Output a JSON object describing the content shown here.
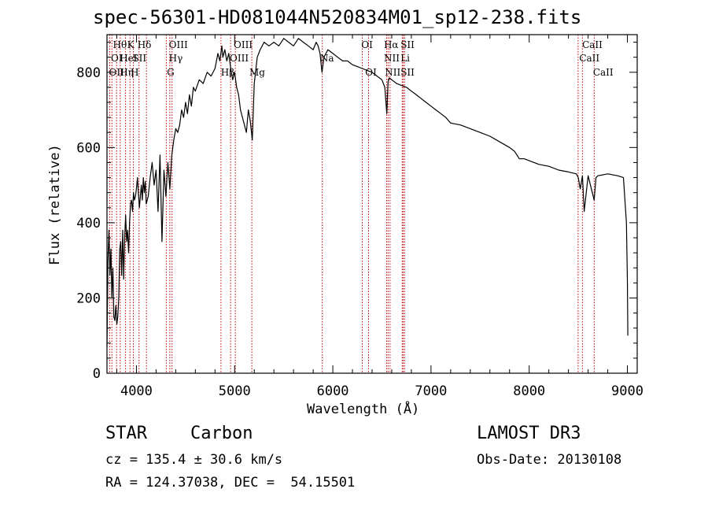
{
  "chart_data": {
    "type": "line",
    "title": "spec-56301-HD081044N520834M01_sp12-238.fits",
    "xlabel": "Wavelength (Å)",
    "ylabel": "Flux (relative)",
    "xlim": [
      3700,
      9100
    ],
    "ylim": [
      0,
      900
    ],
    "xticks": [
      4000,
      5000,
      6000,
      7000,
      8000,
      9000
    ],
    "yticks": [
      0,
      200,
      400,
      600,
      800
    ],
    "xtick_labels": [
      "4000",
      "5000",
      "6000",
      "7000",
      "8000",
      "9000"
    ],
    "ytick_labels": [
      "0",
      "200",
      "400",
      "600",
      "800"
    ],
    "series": [
      {
        "name": "spectrum",
        "x": [
          3700,
          3710,
          3720,
          3730,
          3740,
          3750,
          3760,
          3770,
          3780,
          3790,
          3800,
          3810,
          3820,
          3830,
          3840,
          3850,
          3860,
          3870,
          3880,
          3890,
          3900,
          3910,
          3920,
          3930,
          3940,
          3950,
          3960,
          3970,
          3980,
          3990,
          4000,
          4010,
          4020,
          4030,
          4040,
          4050,
          4060,
          4070,
          4080,
          4090,
          4100,
          4120,
          4140,
          4160,
          4180,
          4200,
          4220,
          4240,
          4260,
          4280,
          4300,
          4320,
          4340,
          4360,
          4380,
          4400,
          4420,
          4440,
          4460,
          4480,
          4500,
          4520,
          4540,
          4560,
          4580,
          4600,
          4640,
          4680,
          4720,
          4760,
          4800,
          4830,
          4850,
          4870,
          4880,
          4900,
          4920,
          4940,
          4960,
          4980,
          5000,
          5020,
          5040,
          5060,
          5080,
          5100,
          5120,
          5140,
          5160,
          5180,
          5200,
          5230,
          5260,
          5300,
          5350,
          5400,
          5450,
          5500,
          5550,
          5600,
          5650,
          5700,
          5750,
          5800,
          5830,
          5850,
          5870,
          5890,
          5900,
          5910,
          5950,
          6000,
          6050,
          6100,
          6150,
          6200,
          6250,
          6300,
          6350,
          6400,
          6450,
          6500,
          6530,
          6550,
          6563,
          6575,
          6600,
          6650,
          6700,
          6750,
          6800,
          6850,
          6900,
          6950,
          7000,
          7050,
          7100,
          7150,
          7200,
          7300,
          7400,
          7500,
          7600,
          7700,
          7800,
          7850,
          7900,
          7950,
          8000,
          8100,
          8200,
          8300,
          8400,
          8480,
          8500,
          8520,
          8542,
          8560,
          8600,
          8662,
          8680,
          8700,
          8800,
          8900,
          8960,
          8990,
          9000,
          9005
        ],
        "values": [
          70,
          300,
          380,
          260,
          330,
          200,
          280,
          150,
          140,
          180,
          130,
          150,
          200,
          330,
          350,
          260,
          380,
          250,
          360,
          420,
          350,
          380,
          320,
          400,
          450,
          460,
          430,
          480,
          460,
          470,
          490,
          520,
          480,
          440,
          470,
          500,
          460,
          520,
          480,
          510,
          450,
          470,
          520,
          560,
          500,
          540,
          430,
          580,
          350,
          540,
          470,
          560,
          490,
          580,
          620,
          650,
          640,
          660,
          700,
          680,
          720,
          690,
          740,
          710,
          760,
          750,
          780,
          770,
          800,
          790,
          810,
          850,
          830,
          870,
          840,
          860,
          830,
          850,
          810,
          780,
          800,
          760,
          740,
          700,
          680,
          660,
          640,
          700,
          670,
          620,
          770,
          840,
          860,
          880,
          870,
          880,
          870,
          890,
          880,
          870,
          890,
          880,
          870,
          860,
          880,
          870,
          850,
          800,
          820,
          840,
          860,
          850,
          840,
          830,
          830,
          820,
          815,
          810,
          805,
          800,
          790,
          780,
          760,
          690,
          775,
          785,
          780,
          770,
          765,
          760,
          750,
          740,
          730,
          720,
          710,
          700,
          690,
          680,
          665,
          660,
          650,
          640,
          630,
          615,
          600,
          590,
          570,
          570,
          565,
          555,
          550,
          540,
          535,
          530,
          520,
          490,
          525,
          430,
          525,
          460,
          520,
          525,
          530,
          525,
          520,
          400,
          250,
          100
        ]
      }
    ],
    "line_marks": [
      {
        "x": 3727,
        "labels": [
          "OII"
        ]
      },
      {
        "x": 3750,
        "labels": [
          "OII"
        ]
      },
      {
        "x": 3798,
        "labels": [
          "Hθ"
        ]
      },
      {
        "x": 3835,
        "labels": [
          "Hη"
        ]
      },
      {
        "x": 3889,
        "labels": [
          "HeI"
        ]
      },
      {
        "x": 3934,
        "labels": [
          "K"
        ]
      },
      {
        "x": 3969,
        "labels": [
          "H"
        ]
      },
      {
        "x": 4026,
        "labels": [
          "SII"
        ]
      },
      {
        "x": 4102,
        "labels": [
          "Hδ"
        ]
      },
      {
        "x": 4304,
        "labels": [
          "G"
        ]
      },
      {
        "x": 4340,
        "labels": [
          "Hγ"
        ]
      },
      {
        "x": 4363,
        "labels": [
          "OIII"
        ]
      },
      {
        "x": 4861,
        "labels": [
          "Hβ"
        ]
      },
      {
        "x": 4959,
        "labels": [
          "OIII"
        ]
      },
      {
        "x": 5007,
        "labels": [
          "OIII"
        ]
      },
      {
        "x": 5175,
        "labels": [
          "Mg"
        ]
      },
      {
        "x": 5893,
        "labels": [
          "Na"
        ]
      },
      {
        "x": 6300,
        "labels": [
          "OI"
        ]
      },
      {
        "x": 6364,
        "labels": [
          "OI"
        ]
      },
      {
        "x": 6548,
        "labels": [
          "NII"
        ]
      },
      {
        "x": 6563,
        "labels": [
          "Hα"
        ]
      },
      {
        "x": 6583,
        "labels": [
          "NII"
        ]
      },
      {
        "x": 6707,
        "labels": [
          "Li"
        ]
      },
      {
        "x": 6717,
        "labels": [
          "SII"
        ]
      },
      {
        "x": 6731,
        "labels": [
          "SII"
        ]
      },
      {
        "x": 8498,
        "labels": [
          "CaII"
        ]
      },
      {
        "x": 8542,
        "labels": [
          "CaII"
        ]
      },
      {
        "x": 8662,
        "labels": [
          "CaII"
        ]
      }
    ],
    "top_labels": [
      {
        "text": "Hθ",
        "x": 3760,
        "row": 0
      },
      {
        "text": "K",
        "x": 3905,
        "row": 0
      },
      {
        "text": "Hδ",
        "x": 4010,
        "row": 0
      },
      {
        "text": "OIII",
        "x": 4330,
        "row": 0
      },
      {
        "text": "OIII",
        "x": 4990,
        "row": 0
      },
      {
        "text": "OI",
        "x": 6290,
        "row": 0
      },
      {
        "text": "Hα",
        "x": 6520,
        "row": 0
      },
      {
        "text": "SII",
        "x": 6690,
        "row": 0
      },
      {
        "text": "CaII",
        "x": 8540,
        "row": 0
      },
      {
        "text": "OI",
        "x": 3740,
        "row": 1
      },
      {
        "text": "HeI",
        "x": 3830,
        "row": 1
      },
      {
        "text": "SII",
        "x": 3960,
        "row": 1
      },
      {
        "text": "Hγ",
        "x": 4330,
        "row": 1
      },
      {
        "text": "OIII",
        "x": 4950,
        "row": 1
      },
      {
        "text": "Na",
        "x": 5870,
        "row": 1
      },
      {
        "text": "NII",
        "x": 6520,
        "row": 1
      },
      {
        "text": "Li",
        "x": 6690,
        "row": 1
      },
      {
        "text": "CaII",
        "x": 8510,
        "row": 1
      },
      {
        "text": "OII",
        "x": 3720,
        "row": 2
      },
      {
        "text": "Hη",
        "x": 3830,
        "row": 2
      },
      {
        "text": "H",
        "x": 3940,
        "row": 2
      },
      {
        "text": "G",
        "x": 4310,
        "row": 2
      },
      {
        "text": "Hβ",
        "x": 4860,
        "row": 2
      },
      {
        "text": "Mg",
        "x": 5150,
        "row": 2
      },
      {
        "text": "OI",
        "x": 6330,
        "row": 2
      },
      {
        "text": "NII",
        "x": 6530,
        "row": 2
      },
      {
        "text": "SII",
        "x": 6690,
        "row": 2
      },
      {
        "text": "CaII",
        "x": 8650,
        "row": 2
      }
    ],
    "colors": {
      "spectrum": "#000000",
      "line_marks": "#c00000",
      "axes": "#000000"
    }
  },
  "info": {
    "object_class": "STAR",
    "subclass": "Carbon",
    "survey": "LAMOST DR3",
    "redshift_line": "cz = 135.4 ± 30.6 km/s",
    "obs_date": "Obs-Date: 20130108",
    "coords": "RA = 124.37038, DEC =  54.15501"
  }
}
